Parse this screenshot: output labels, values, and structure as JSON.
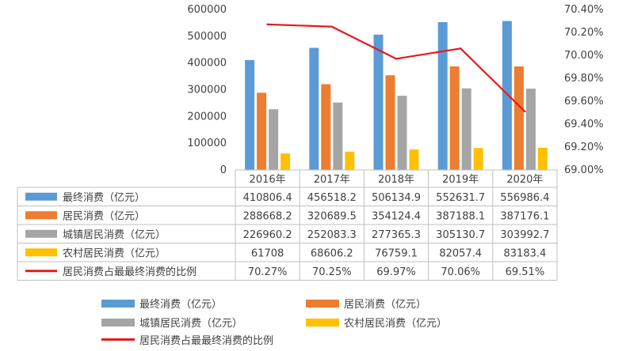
{
  "chart_data": {
    "type": "bar",
    "categories": [
      "2016年",
      "2017年",
      "2018年",
      "2019年",
      "2020年"
    ],
    "series": [
      {
        "name": "最终消费（亿元）",
        "kind": "bar",
        "color": "#5B9BD5",
        "values": [
          410806.4,
          456518.2,
          506134.9,
          552631.7,
          556986.4
        ],
        "labels": [
          "410806.4",
          "456518.2",
          "506134.9",
          "552631.7",
          "556986.4"
        ]
      },
      {
        "name": "居民消费（亿元）",
        "kind": "bar",
        "color": "#ED7D31",
        "values": [
          288668.2,
          320689.5,
          354124.4,
          387188.1,
          387176.1
        ],
        "labels": [
          "288668.2",
          "320689.5",
          "354124.4",
          "387188.1",
          "387176.1"
        ]
      },
      {
        "name": "城镇居民消费（亿元）",
        "kind": "bar",
        "color": "#A5A5A5",
        "values": [
          226960.2,
          252083.3,
          277365.3,
          305130.7,
          303992.7
        ],
        "labels": [
          "226960.2",
          "252083.3",
          "277365.3",
          "305130.7",
          "303992.7"
        ]
      },
      {
        "name": "农村居民消费（亿元）",
        "kind": "bar",
        "color": "#FFC000",
        "values": [
          61708,
          68606.2,
          76759.1,
          82057.4,
          83183.4
        ],
        "labels": [
          "61708",
          "68606.2",
          "76759.1",
          "82057.4",
          "83183.4"
        ]
      },
      {
        "name": "居民消费占最最终消费的比例",
        "kind": "line",
        "axis": "right",
        "color": "#E8191A",
        "values": [
          70.27,
          70.25,
          69.97,
          70.06,
          69.51
        ],
        "labels": [
          "70.27%",
          "70.25%",
          "69.97%",
          "70.06%",
          "69.51%"
        ]
      }
    ],
    "y_left": {
      "min": 0,
      "max": 600000,
      "ticks": [
        "0",
        "100000",
        "200000",
        "300000",
        "400000",
        "500000",
        "600000"
      ]
    },
    "y_right": {
      "min": 69.0,
      "max": 70.4,
      "ticks": [
        "69.00%",
        "69.20%",
        "69.40%",
        "69.60%",
        "69.80%",
        "70.00%",
        "70.20%",
        "70.40%"
      ]
    },
    "grid": false,
    "data_table": true,
    "legend_position": "bottom"
  }
}
